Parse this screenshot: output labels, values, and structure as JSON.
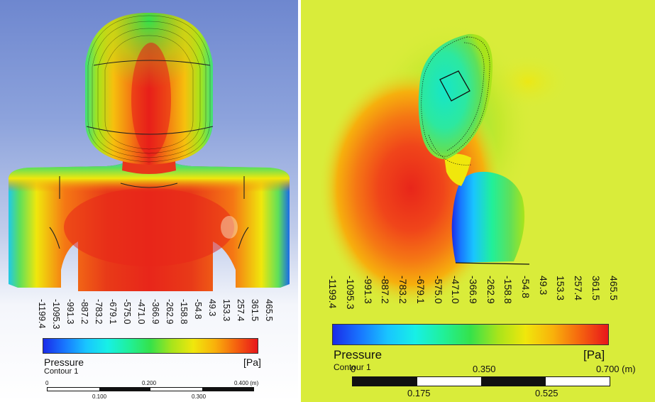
{
  "colorbar": {
    "ticks": [
      "-1199.4",
      "-1095.3",
      "-991.3",
      "-887.2",
      "-783.2",
      "-679.1",
      "-575.0",
      "-471.0",
      "-366.9",
      "-262.9",
      "-158.8",
      "-54.8",
      "49.3",
      "153.3",
      "257.4",
      "361.5",
      "465.5"
    ],
    "variable_label": "Pressure",
    "unit_label": "[Pa]",
    "contour_label": "Contour 1"
  },
  "left_scale": {
    "top_labels": [
      "0",
      "0.200",
      "0.400 (m)"
    ],
    "bottom_labels": [
      "0.100",
      "0.300"
    ]
  },
  "right_scale": {
    "top_labels": [
      "0",
      "0.350",
      "0.700  (m)"
    ],
    "bottom_labels": [
      "0.175",
      "0.525"
    ]
  },
  "colors": {
    "min_blue": "#1a2be8",
    "mid_green": "#35e24a",
    "max_red": "#e8161b",
    "far_field_yellow": "#d9ec3a"
  }
}
